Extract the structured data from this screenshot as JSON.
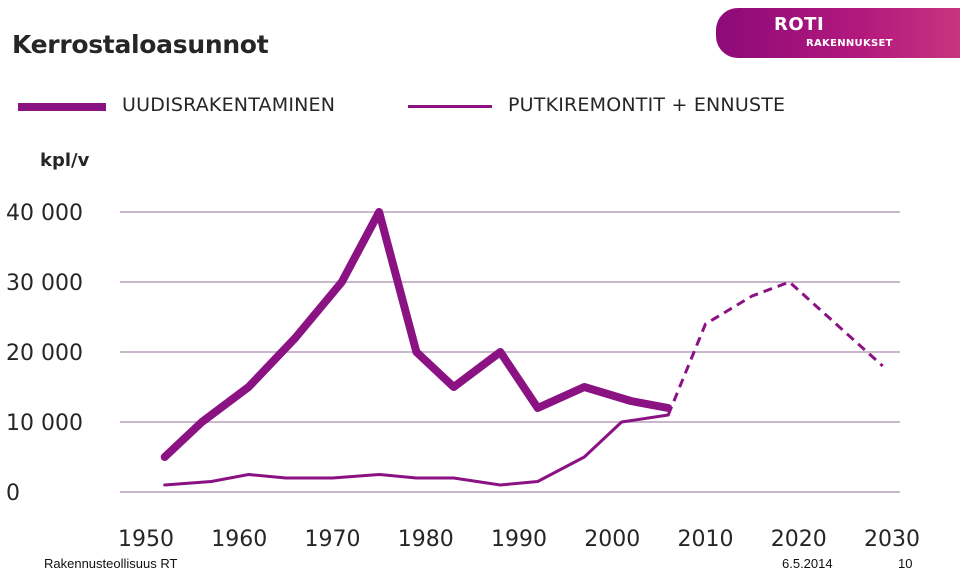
{
  "header": {
    "title": "Kerrostaloasunnot",
    "logo_text": "ROTI",
    "logo_subtext": "RAKENNUKSET",
    "logo_color": "#9b1280"
  },
  "footer": {
    "source": "Rakennusteollisuus RT",
    "date": "6.5.2014",
    "page": "10"
  },
  "chart_data": {
    "type": "line",
    "ylabel": "kpl/v",
    "ylim": [
      0,
      40000
    ],
    "xlim": [
      1950,
      2030
    ],
    "yticks": [
      {
        "value": 0,
        "label": "0"
      },
      {
        "value": 10000,
        "label": "10 000"
      },
      {
        "value": 20000,
        "label": "20 000"
      },
      {
        "value": 30000,
        "label": "30 000"
      },
      {
        "value": 40000,
        "label": "40 000"
      }
    ],
    "xticks": [
      {
        "value": 1950,
        "label": "1950"
      },
      {
        "value": 1960,
        "label": "1960"
      },
      {
        "value": 1970,
        "label": "1970"
      },
      {
        "value": 1980,
        "label": "1980"
      },
      {
        "value": 1990,
        "label": "1990"
      },
      {
        "value": 2000,
        "label": "2000"
      },
      {
        "value": 2010,
        "label": "2010"
      },
      {
        "value": 2020,
        "label": "2020"
      },
      {
        "value": 2030,
        "label": "2030"
      }
    ],
    "grid": true,
    "legend_position": "top",
    "color": "#8b1283",
    "series": [
      {
        "name": "UUDISRAKENTAMINEN",
        "style": "thick",
        "points": [
          [
            1952,
            5000
          ],
          [
            1956,
            10000
          ],
          [
            1961,
            15000
          ],
          [
            1966,
            22000
          ],
          [
            1971,
            30000
          ],
          [
            1975,
            40000
          ],
          [
            1979,
            20000
          ],
          [
            1983,
            15000
          ],
          [
            1988,
            20000
          ],
          [
            1992,
            12000
          ],
          [
            1997,
            15000
          ],
          [
            2002,
            13000
          ],
          [
            2006,
            12000
          ]
        ]
      },
      {
        "name": "PUTKIREMONTIT + ENNUSTE",
        "style": "thin",
        "points": [
          [
            1952,
            1000
          ],
          [
            1957,
            1500
          ],
          [
            1961,
            2500
          ],
          [
            1965,
            2000
          ],
          [
            1970,
            2000
          ],
          [
            1975,
            2500
          ],
          [
            1979,
            2000
          ],
          [
            1983,
            2000
          ],
          [
            1988,
            1000
          ],
          [
            1992,
            1500
          ],
          [
            1997,
            5000
          ],
          [
            2001,
            10000
          ],
          [
            2006,
            11000
          ]
        ],
        "forecast_points": [
          [
            2006,
            11000
          ],
          [
            2010,
            24000
          ],
          [
            2015,
            28000
          ],
          [
            2019,
            30000
          ],
          [
            2029,
            18000
          ]
        ]
      }
    ]
  }
}
